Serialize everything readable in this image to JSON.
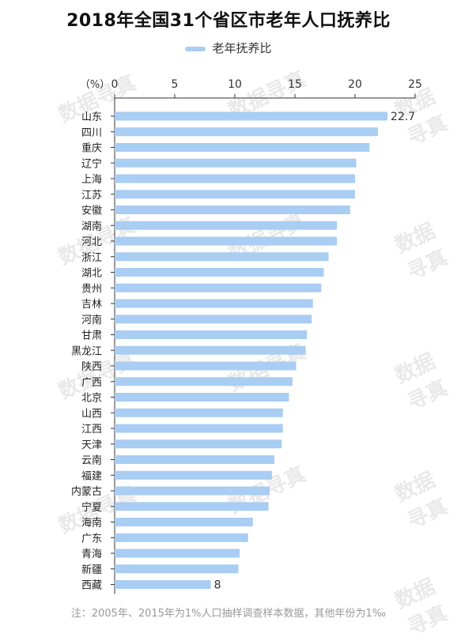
{
  "chart_data": {
    "type": "bar",
    "orientation": "horizontal",
    "title": "2018年全国31个省区市老年人口抚养比",
    "unit_label": "（%）",
    "legend": "老年抚养比",
    "bar_color": "#a9cdf3",
    "xlim": [
      0,
      25
    ],
    "ticks": [
      0,
      5,
      10,
      15,
      20,
      25
    ],
    "grid": false,
    "categories": [
      "山东",
      "四川",
      "重庆",
      "辽宁",
      "上海",
      "江苏",
      "安徽",
      "湖南",
      "河北",
      "浙江",
      "湖北",
      "贵州",
      "吉林",
      "河南",
      "甘肃",
      "黑龙江",
      "陕西",
      "广西",
      "北京",
      "山西",
      "江西",
      "天津",
      "云南",
      "福建",
      "内蒙古",
      "宁夏",
      "海南",
      "广东",
      "青海",
      "新疆",
      "西藏"
    ],
    "values": [
      22.7,
      21.9,
      21.2,
      20.1,
      20.0,
      20.0,
      19.6,
      18.5,
      18.5,
      17.8,
      17.4,
      17.2,
      16.5,
      16.4,
      16.0,
      15.9,
      15.1,
      14.8,
      14.5,
      14.0,
      14.0,
      13.9,
      13.3,
      13.1,
      12.9,
      12.8,
      11.5,
      11.1,
      10.4,
      10.3,
      8.0
    ],
    "data_labels": {
      "0": "22.7",
      "30": "8"
    },
    "note": "注：2005年、2015年为1%人口抽样调查样本数据，其他年份为1‰"
  },
  "watermark_text": "数据寻真"
}
